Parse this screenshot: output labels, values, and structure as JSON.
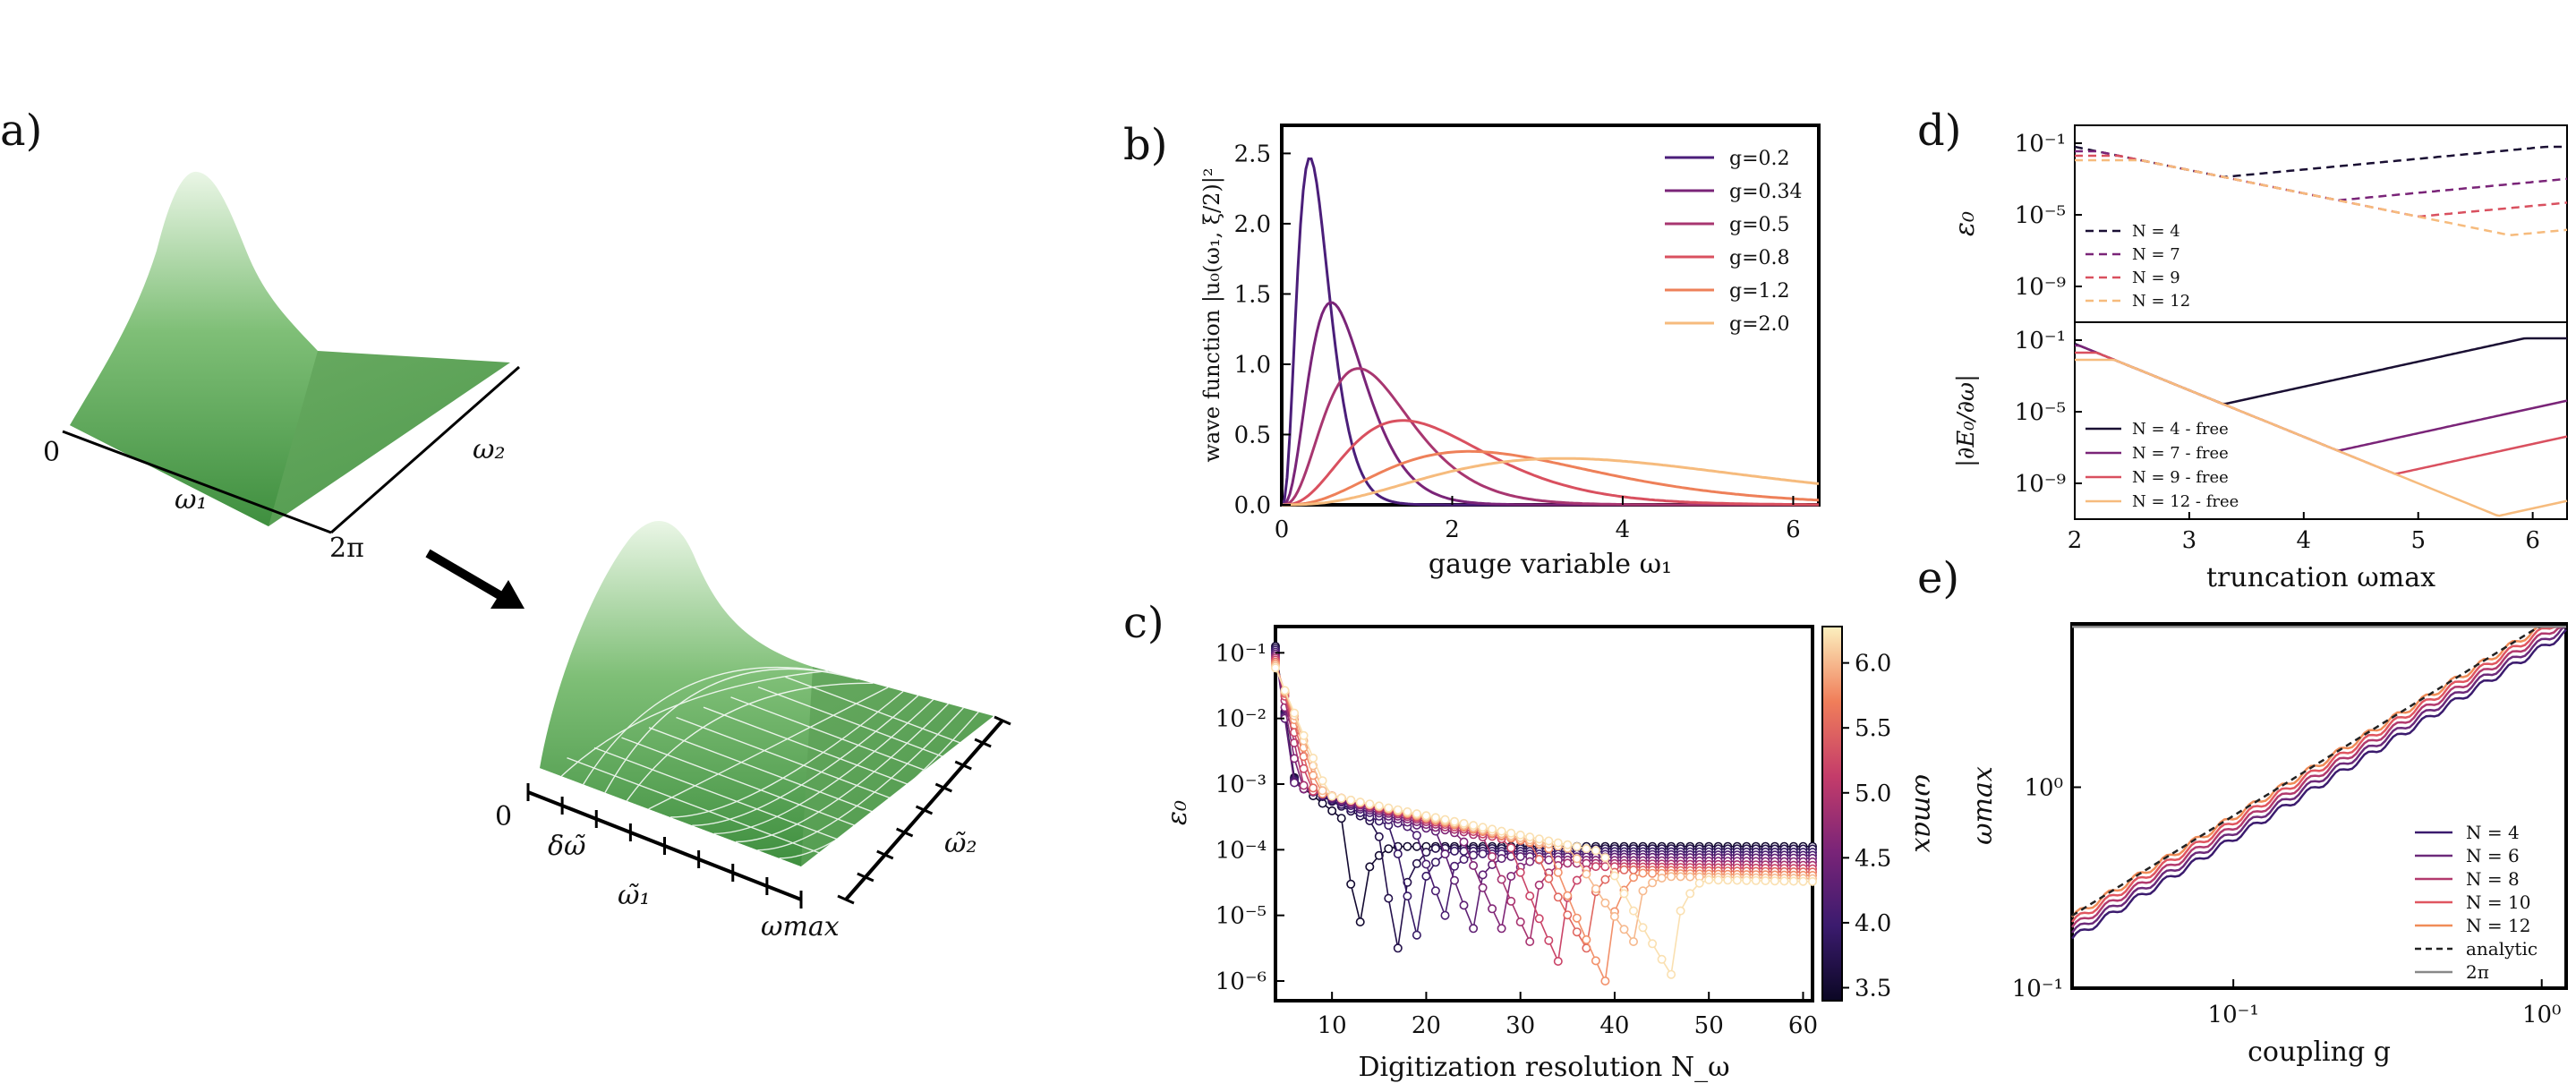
{
  "panel_labels": {
    "a": "a)",
    "b": "b)",
    "c": "c)",
    "d": "d)",
    "e": "e)"
  },
  "panel_a": {
    "surface1": {
      "origin": "0",
      "x_end": "2π",
      "x_label": "ω₁",
      "y_label": "ω₂"
    },
    "surface2": {
      "origin": "0",
      "step_label": "δω̃",
      "x_label": "ω̃₁",
      "x_end": "ωmax",
      "y_label": "ω̃₂"
    },
    "colors": {
      "surface_dark": "#3f8f3f",
      "surface_light": "#e8f5e4"
    }
  },
  "chart_data": [
    {
      "id": "b",
      "type": "line",
      "xlabel": "gauge variable ω₁",
      "ylabel": "wave function |u₀(ω₁, ξ/2)|²",
      "xlim": [
        0,
        6.3
      ],
      "ylim": [
        0,
        2.7
      ],
      "x_ticks": [
        "0",
        "2",
        "4",
        "6"
      ],
      "y_ticks": [
        "0.0",
        "0.5",
        "1.0",
        "1.5",
        "2.0",
        "2.5"
      ],
      "legend_position": "top-right",
      "series": [
        {
          "name": "g=0.2",
          "peak_x": 0.33,
          "peak_y": 2.47,
          "color": "#4b1e7a"
        },
        {
          "name": "g=0.34",
          "peak_x": 0.58,
          "peak_y": 1.44,
          "color": "#7a2478"
        },
        {
          "name": "g=0.5",
          "peak_x": 0.9,
          "peak_y": 0.97,
          "color": "#a83670"
        },
        {
          "name": "g=0.8",
          "peak_x": 1.42,
          "peak_y": 0.6,
          "color": "#d9505f"
        },
        {
          "name": "g=1.2",
          "peak_x": 2.2,
          "peak_y": 0.38,
          "color": "#ee8059"
        },
        {
          "name": "g=2.0",
          "peak_x": 3.3,
          "peak_y": 0.33,
          "color": "#f6bb7d"
        }
      ]
    },
    {
      "id": "c",
      "type": "line",
      "xlabel": "Digitization resolution N_ω",
      "ylabel": "ε₀",
      "xlim": [
        4,
        61
      ],
      "ylim": [
        -6.3,
        -0.6
      ],
      "y_scale": "log",
      "x_ticks": [
        "10",
        "20",
        "30",
        "40",
        "50",
        "60"
      ],
      "y_ticks": [
        "10⁻⁶",
        "10⁻⁵",
        "10⁻⁴",
        "10⁻³",
        "10⁻²",
        "10⁻¹"
      ],
      "colorbar": {
        "label": "ωmax",
        "ticks": [
          "3.5",
          "4.0",
          "4.5",
          "5.0",
          "5.5",
          "6.0"
        ],
        "range": [
          3.4,
          6.28
        ]
      },
      "series": [
        {
          "wmax": 3.5,
          "dip_n": 13,
          "dip_logy": -5.1,
          "plateau_logy": -3.95
        },
        {
          "wmax": 3.7,
          "dip_n": 17,
          "dip_logy": -5.5,
          "plateau_logy": -3.98
        },
        {
          "wmax": 3.9,
          "dip_n": 19,
          "dip_logy": -5.3,
          "plateau_logy": -4.02
        },
        {
          "wmax": 4.1,
          "dip_n": 22,
          "dip_logy": -5.0,
          "plateau_logy": -4.06
        },
        {
          "wmax": 4.3,
          "dip_n": 25,
          "dip_logy": -5.2,
          "plateau_logy": -4.1
        },
        {
          "wmax": 4.6,
          "dip_n": 28,
          "dip_logy": -5.2,
          "plateau_logy": -4.15
        },
        {
          "wmax": 4.9,
          "dip_n": 31,
          "dip_logy": -5.4,
          "plateau_logy": -4.2
        },
        {
          "wmax": 5.2,
          "dip_n": 34,
          "dip_logy": -5.7,
          "plateau_logy": -4.25
        },
        {
          "wmax": 5.5,
          "dip_n": 37,
          "dip_logy": -5.5,
          "plateau_logy": -4.3
        },
        {
          "wmax": 5.8,
          "dip_n": 39,
          "dip_logy": -6.0,
          "plateau_logy": -4.35
        },
        {
          "wmax": 6.0,
          "dip_n": 42,
          "dip_logy": -5.4,
          "plateau_logy": -4.4
        },
        {
          "wmax": 6.2,
          "dip_n": 46,
          "dip_logy": -5.9,
          "plateau_logy": -4.45
        }
      ]
    },
    {
      "id": "d_top",
      "type": "line",
      "ylabel": "ε₀",
      "xlim": [
        2,
        6.3
      ],
      "ylim": [
        -11,
        0
      ],
      "y_scale": "log",
      "y_ticks": [
        "10⁻¹",
        "10⁻⁵",
        "10⁻⁹"
      ],
      "legend_position": "lower-left",
      "series": [
        {
          "name": "N = 4",
          "style": "dashed",
          "dip_x": 3.3,
          "color": "#1a0f33"
        },
        {
          "name": "N = 7",
          "style": "dashed",
          "dip_x": 4.3,
          "color": "#7a2478"
        },
        {
          "name": "N = 9",
          "style": "dashed",
          "dip_x": 5.0,
          "color": "#d9505f"
        },
        {
          "name": "N = 12",
          "style": "dashed",
          "dip_x": 5.8,
          "color": "#f6bb7d"
        }
      ]
    },
    {
      "id": "d_bottom",
      "type": "line",
      "xlabel": "truncation ωmax",
      "ylabel": "|∂E₀/∂ω|",
      "xlim": [
        2,
        6.3
      ],
      "ylim": [
        -11,
        0
      ],
      "y_scale": "log",
      "x_ticks": [
        "2",
        "3",
        "4",
        "5",
        "6"
      ],
      "y_ticks": [
        "10⁻¹",
        "10⁻⁵",
        "10⁻⁹"
      ],
      "legend_position": "lower-left",
      "series": [
        {
          "name": "N = 4 - free",
          "style": "solid",
          "dip_x": 3.3,
          "color": "#1a0f33"
        },
        {
          "name": "N = 7 - free",
          "style": "solid",
          "dip_x": 4.3,
          "color": "#7a2478"
        },
        {
          "name": "N = 9 - free",
          "style": "solid",
          "dip_x": 4.8,
          "color": "#d9505f"
        },
        {
          "name": "N = 12 - free",
          "style": "solid",
          "dip_x": 5.7,
          "color": "#f6bb7d"
        }
      ]
    },
    {
      "id": "e",
      "type": "line",
      "xlabel": "coupling g",
      "ylabel": "ωmax",
      "x_scale": "log",
      "y_scale": "log",
      "xlim": [
        0.03,
        1.2
      ],
      "ylim": [
        0.1,
        6.5
      ],
      "x_ticks": [
        "10⁻¹",
        "10⁰"
      ],
      "y_ticks": [
        "10⁻¹",
        "10⁰"
      ],
      "legend_position": "lower-right",
      "series": [
        {
          "name": "N = 4",
          "style": "solid",
          "color": "#3b1b6e"
        },
        {
          "name": "N = 6",
          "style": "solid",
          "color": "#6d2a7a"
        },
        {
          "name": "N = 8",
          "style": "solid",
          "color": "#b23a6e"
        },
        {
          "name": "N = 10",
          "style": "solid",
          "color": "#e05660"
        },
        {
          "name": "N = 12",
          "style": "solid",
          "color": "#f08c58"
        },
        {
          "name": "analytic",
          "style": "dashed",
          "color": "#222222"
        },
        {
          "name": "2π",
          "style": "solid",
          "color": "#888888",
          "value": 6.2832
        }
      ]
    }
  ]
}
